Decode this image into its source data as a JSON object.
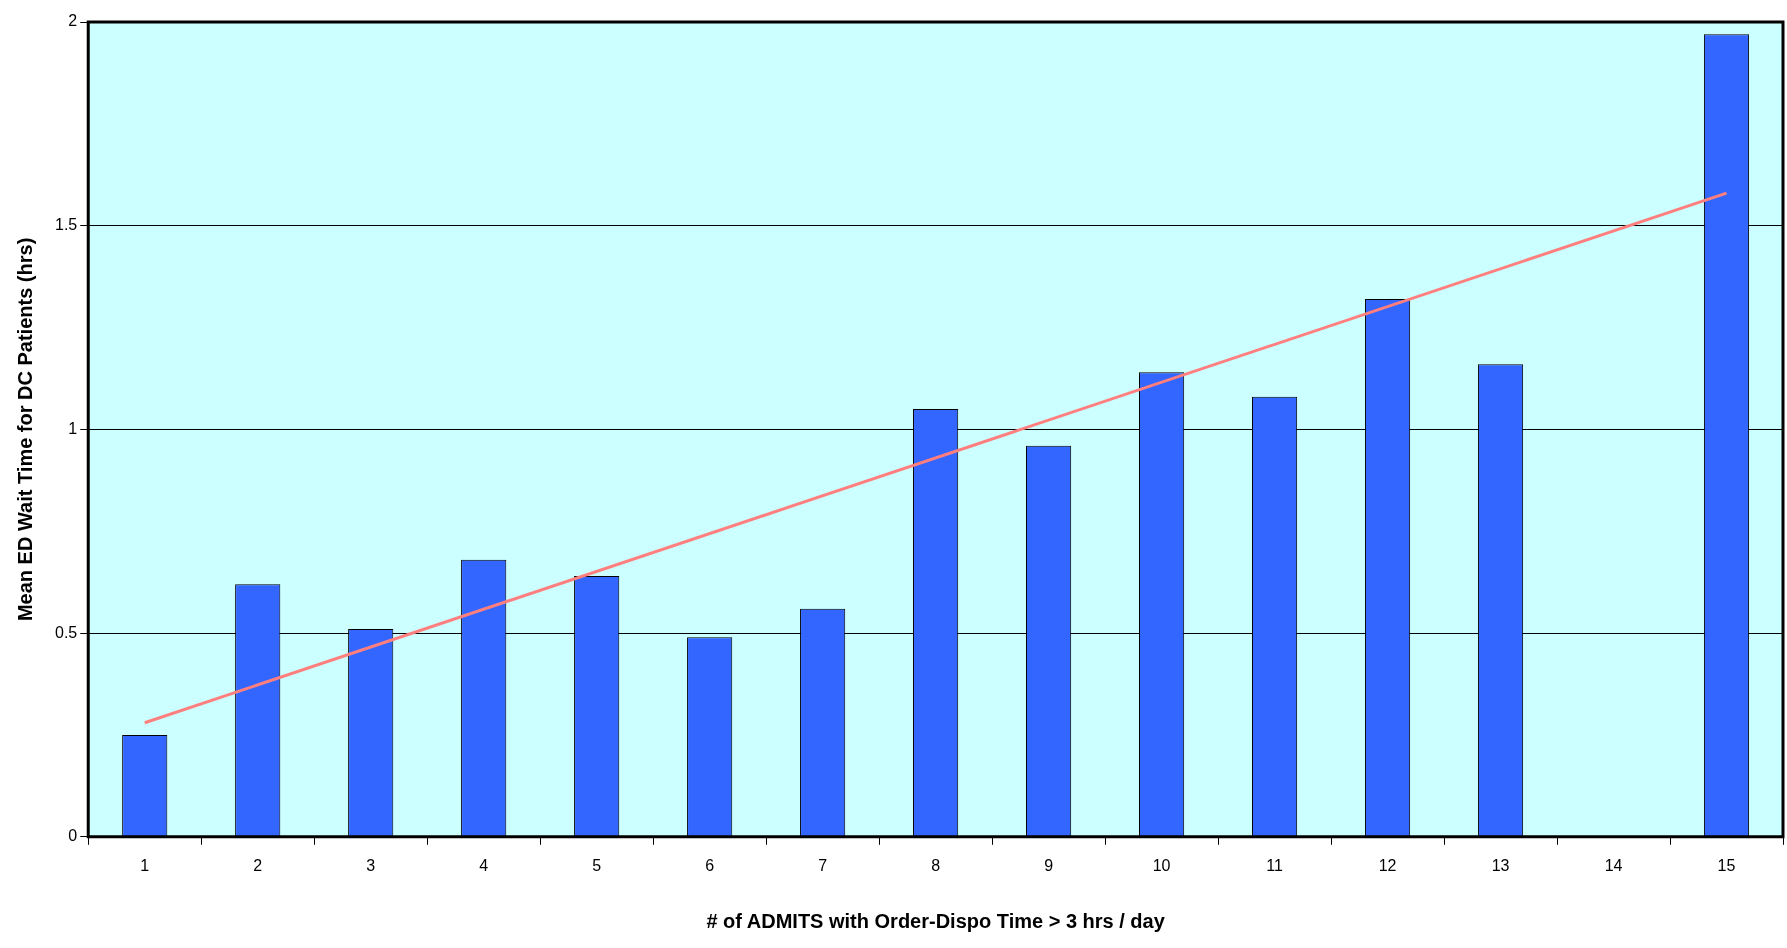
{
  "chart_data": {
    "type": "bar",
    "xlabel": "# of ADMITS with Order-Dispo Time > 3 hrs / day",
    "ylabel": "Mean ED Wait Time for DC Patients (hrs)",
    "categories": [
      "1",
      "2",
      "3",
      "4",
      "5",
      "6",
      "7",
      "8",
      "9",
      "10",
      "11",
      "12",
      "13",
      "14",
      "15"
    ],
    "series": [
      {
        "color": "#3366ff",
        "values": [
          0.25,
          0.62,
          0.51,
          0.68,
          0.64,
          0.49,
          0.56,
          1.05,
          0.96,
          1.14,
          1.08,
          1.32,
          1.16,
          null,
          1.97
        ]
      },
      {
        "type": "line",
        "color": "#ff7f7f",
        "values": [
          0.28,
          null,
          null,
          null,
          null,
          null,
          null,
          null,
          null,
          null,
          null,
          null,
          null,
          null,
          1.58
        ]
      }
    ],
    "ylim": [
      0,
      2
    ],
    "yticks": [
      0,
      0.5,
      1,
      1.5,
      2
    ],
    "grid": "y",
    "legend": false,
    "marker": "none"
  }
}
